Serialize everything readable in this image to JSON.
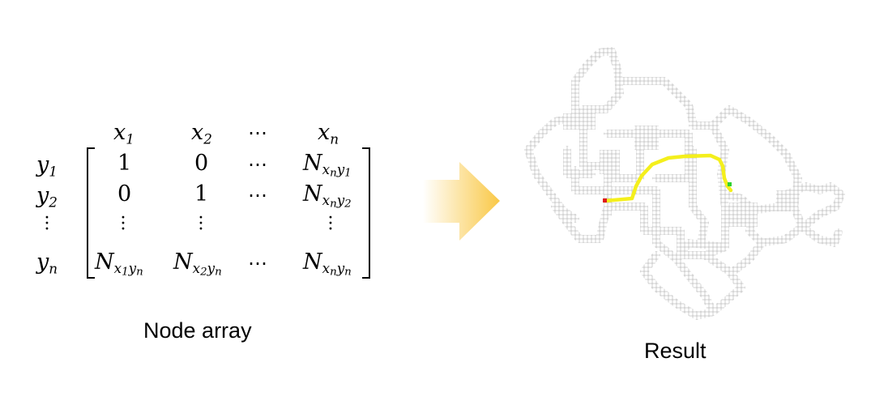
{
  "matrix": {
    "col_headers": [
      "x",
      "x",
      "⋯",
      "x"
    ],
    "col_header_subs": [
      "1",
      "2",
      "",
      "n"
    ],
    "row_headers": [
      "y",
      "y",
      "⋮",
      "y"
    ],
    "row_header_subs": [
      "1",
      "2",
      "",
      "n"
    ],
    "cells": [
      [
        "1",
        "0",
        "⋯",
        "N"
      ],
      [
        "0",
        "1",
        "⋯",
        "N"
      ],
      [
        "⋮",
        "⋮",
        "",
        "⋮"
      ],
      [
        "N",
        "N",
        "⋯",
        "N"
      ]
    ]
  },
  "captions": {
    "left": "Node array",
    "right": "Result"
  },
  "colors": {
    "arrow_start": "#ffffff",
    "arrow_end": "#f9c846",
    "grid": "#b0b0b0",
    "path": "#f4ef1c",
    "start_marker": "#e01b1b",
    "end_marker": "#2fd12f"
  }
}
